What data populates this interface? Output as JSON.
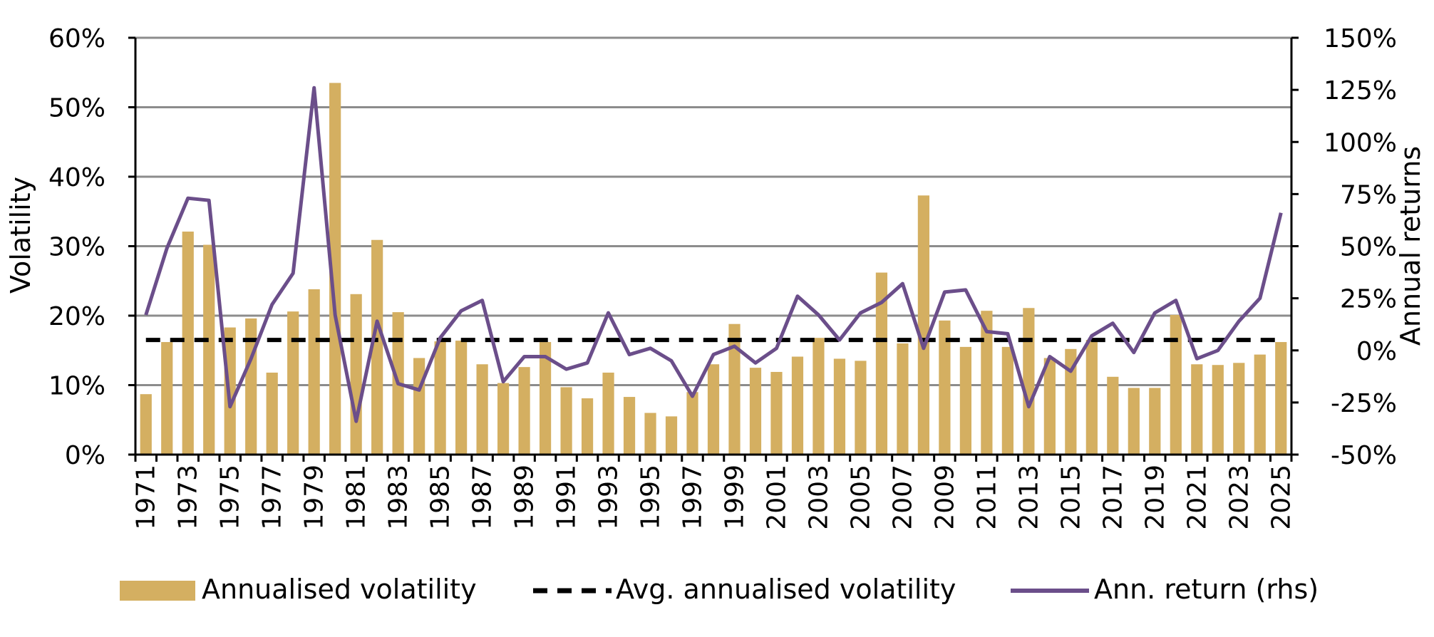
{
  "chart_data": {
    "type": "bar+line",
    "title": "",
    "xlabel": "",
    "ylabel_left": "Volatility",
    "ylabel_right": "Annual returns",
    "ylim_left": [
      0,
      60
    ],
    "ylim_right": [
      -50,
      150
    ],
    "left_ticks": [
      "0%",
      "10%",
      "20%",
      "30%",
      "40%",
      "50%",
      "60%"
    ],
    "left_tick_values": [
      0,
      10,
      20,
      30,
      40,
      50,
      60
    ],
    "right_ticks": [
      "-50%",
      "-25%",
      "0%",
      "25%",
      "50%",
      "75%",
      "100%",
      "125%",
      "150%"
    ],
    "right_tick_values": [
      -50,
      -25,
      0,
      25,
      50,
      75,
      100,
      125,
      150
    ],
    "x_tick_labels": [
      "1971",
      "1973",
      "1975",
      "1977",
      "1979",
      "1981",
      "1983",
      "1985",
      "1987",
      "1989",
      "1991",
      "1993",
      "1995",
      "1997",
      "1999",
      "2001",
      "2003",
      "2005",
      "2007",
      "2009",
      "2011",
      "2013",
      "2015",
      "2017",
      "2019",
      "2021",
      "2023",
      "2025"
    ],
    "years": [
      1971,
      1972,
      1973,
      1974,
      1975,
      1976,
      1977,
      1978,
      1979,
      1980,
      1981,
      1982,
      1983,
      1984,
      1985,
      1986,
      1987,
      1988,
      1989,
      1990,
      1991,
      1992,
      1993,
      1994,
      1995,
      1996,
      1997,
      1998,
      1999,
      2000,
      2001,
      2002,
      2003,
      2004,
      2005,
      2006,
      2007,
      2008,
      2009,
      2010,
      2011,
      2012,
      2013,
      2014,
      2015,
      2016,
      2017,
      2018,
      2019,
      2020,
      2021,
      2022,
      2023,
      2024,
      2025
    ],
    "grid": true,
    "legend_position": "bottom",
    "series": [
      {
        "name": "Annualised volatility",
        "type": "bar",
        "axis": "left",
        "color": "#D4AF61",
        "values": [
          8.7,
          16.2,
          32.1,
          30.2,
          18.3,
          19.6,
          11.8,
          20.6,
          23.8,
          53.5,
          23.1,
          30.9,
          20.5,
          13.9,
          16.3,
          16.4,
          13.0,
          10.3,
          12.6,
          16.2,
          9.7,
          8.1,
          11.8,
          8.3,
          6.0,
          5.5,
          9.0,
          13.0,
          18.8,
          12.5,
          11.9,
          14.1,
          16.8,
          13.8,
          13.5,
          26.2,
          16.0,
          37.3,
          19.3,
          15.5,
          20.7,
          15.5,
          21.1,
          13.9,
          15.2,
          16.5,
          11.2,
          9.6,
          9.6,
          20.1,
          13.0,
          12.9,
          13.2,
          14.4,
          16.2
        ]
      },
      {
        "name": "Avg. annualised volatility",
        "type": "dashed-line",
        "axis": "left",
        "color": "#000000",
        "value": 16.5
      },
      {
        "name": "Ann. return (rhs)",
        "type": "line",
        "axis": "right",
        "color": "#6B4E8A",
        "values": [
          17,
          49,
          73,
          72,
          -27,
          -4,
          22,
          37,
          126,
          17,
          -34,
          14,
          -16,
          -19,
          6,
          19,
          24,
          -15,
          -3,
          -3,
          -9,
          -6,
          18,
          -2,
          1,
          -5,
          -22,
          -2,
          2,
          -6,
          1,
          26,
          17,
          5,
          18,
          23,
          32,
          1,
          28,
          29,
          9,
          8,
          -27,
          -3,
          -10,
          7,
          13,
          -1,
          18,
          24,
          -4,
          0,
          14,
          25,
          66
        ]
      }
    ]
  }
}
